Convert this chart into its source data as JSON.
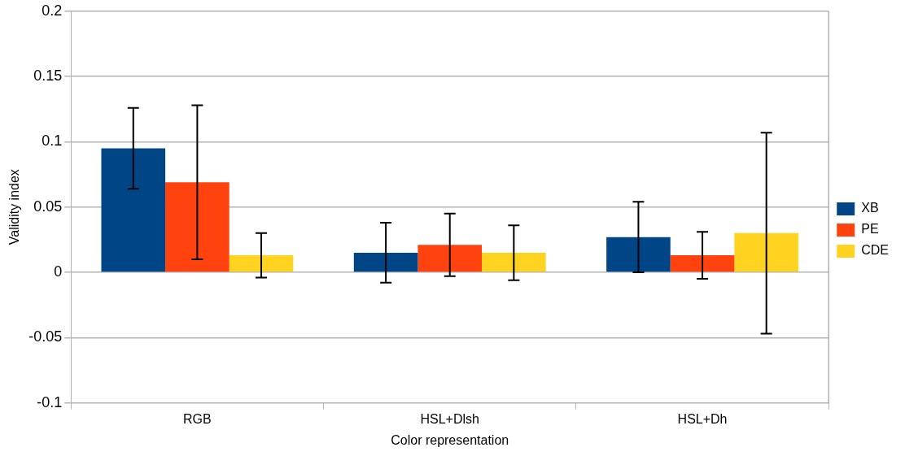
{
  "chart_data": {
    "type": "bar",
    "xlabel": "Color representation",
    "ylabel": "Validity index",
    "categories": [
      "RGB",
      "HSL+Dlsh",
      "HSL+Dh"
    ],
    "series": [
      {
        "name": "XB",
        "color": "#004586",
        "values": [
          0.095,
          0.015,
          0.027
        ],
        "errors": [
          0.031,
          0.023,
          0.027
        ]
      },
      {
        "name": "PE",
        "color": "#ff420e",
        "values": [
          0.069,
          0.021,
          0.013
        ],
        "errors": [
          0.059,
          0.024,
          0.018
        ]
      },
      {
        "name": "CDE",
        "color": "#ffd320",
        "values": [
          0.013,
          0.015,
          0.03
        ],
        "errors": [
          0.017,
          0.021,
          0.077
        ]
      }
    ],
    "ylim": [
      -0.1,
      0.2
    ],
    "yticks": [
      -0.1,
      -0.05,
      0,
      0.05,
      0.1,
      0.15,
      0.2
    ],
    "grid": "y",
    "legend": "right"
  }
}
